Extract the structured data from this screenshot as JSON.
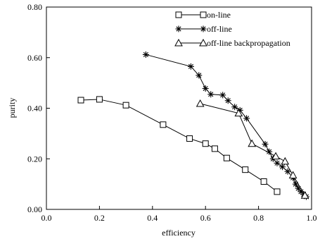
{
  "chart_data": {
    "type": "line",
    "xlabel": "efficiency",
    "ylabel": "purity",
    "xlim": [
      0.0,
      1.0
    ],
    "ylim": [
      0.0,
      0.8
    ],
    "xticks": [
      0.0,
      0.2,
      0.4,
      0.6,
      0.8,
      1.0
    ],
    "yticks": [
      0.0,
      0.2,
      0.4,
      0.6,
      0.8
    ],
    "xtick_labels": [
      "0.0",
      "0.2",
      "0.4",
      "0.6",
      "0.8",
      "1.0"
    ],
    "ytick_labels": [
      "0.00",
      "0.20",
      "0.40",
      "0.60",
      "0.80"
    ],
    "grid": false,
    "legend_position": "top-right",
    "series": [
      {
        "name": "on-line",
        "marker": "square",
        "x": [
          0.13,
          0.2,
          0.3,
          0.44,
          0.54,
          0.6,
          0.635,
          0.68,
          0.75,
          0.82,
          0.87
        ],
        "y": [
          0.432,
          0.435,
          0.412,
          0.335,
          0.28,
          0.26,
          0.24,
          0.203,
          0.157,
          0.11,
          0.07
        ]
      },
      {
        "name": "off-line",
        "marker": "asterisk",
        "x": [
          0.375,
          0.545,
          0.575,
          0.6,
          0.62,
          0.665,
          0.685,
          0.71,
          0.73,
          0.755,
          0.825,
          0.84,
          0.855,
          0.87,
          0.89,
          0.91,
          0.93,
          0.94,
          0.95,
          0.96,
          0.97,
          0.98
        ],
        "y": [
          0.612,
          0.565,
          0.53,
          0.478,
          0.455,
          0.452,
          0.43,
          0.405,
          0.392,
          0.36,
          0.258,
          0.228,
          0.2,
          0.183,
          0.168,
          0.15,
          0.125,
          0.1,
          0.083,
          0.07,
          0.06,
          0.05
        ]
      },
      {
        "name": "off-line backpropagation",
        "marker": "triangle",
        "x": [
          0.58,
          0.725,
          0.775,
          0.865,
          0.9,
          0.93,
          0.975
        ],
        "y": [
          0.418,
          0.38,
          0.26,
          0.21,
          0.19,
          0.135,
          0.055
        ]
      }
    ]
  }
}
